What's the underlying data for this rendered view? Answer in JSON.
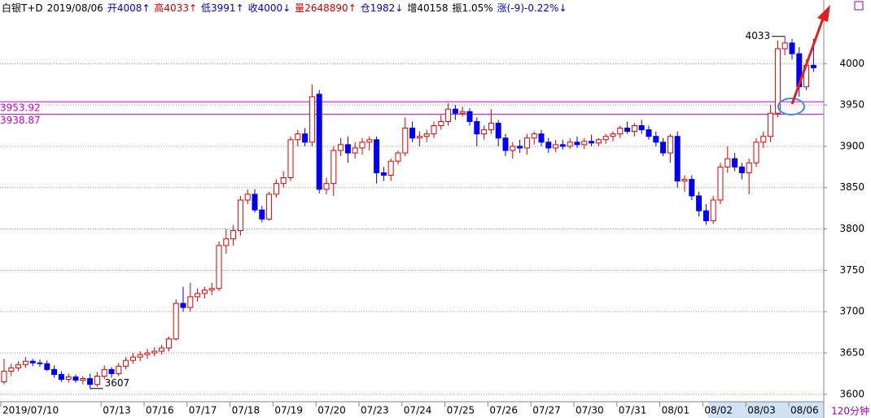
{
  "chart_data": {
    "type": "candlestick",
    "header": [
      {
        "text": "白银T+D",
        "color": "#000000"
      },
      {
        "text": "2019/08/06",
        "color": "#000000"
      },
      {
        "text": "开4008↑",
        "color": "#0000cc"
      },
      {
        "text": "高4033↑",
        "color": "#cc0000"
      },
      {
        "text": "低3991↑",
        "color": "#0000cc"
      },
      {
        "text": "收4000↓",
        "color": "#0000cc"
      },
      {
        "text": "量2648890↑",
        "color": "#cc0000"
      },
      {
        "text": "仓1982↓",
        "color": "#0000cc"
      },
      {
        "text": "增40158",
        "color": "#000000"
      },
      {
        "text": "振1.05%",
        "color": "#000000"
      },
      {
        "text": "涨(-9)-0.22%↓",
        "color": "#0000cc"
      }
    ],
    "period": "120分钟",
    "up_color": "#dd0000",
    "down_color": "#0000ee",
    "ylim": [
      3591,
      4077
    ],
    "yticks": [
      3600,
      3650,
      3700,
      3750,
      3800,
      3850,
      3900,
      3950,
      4000
    ],
    "grid": true,
    "reference_lines": [
      3953.92,
      3938.87
    ],
    "reference_color": "#cc00cc",
    "annotations": [
      3607,
      4033
    ],
    "categories": [
      "2019/07/10",
      null,
      null,
      null,
      null,
      null,
      null,
      null,
      null,
      null,
      null,
      null,
      null,
      null,
      "07/13",
      null,
      null,
      null,
      null,
      null,
      "07/16",
      null,
      null,
      null,
      null,
      null,
      "07/17",
      null,
      null,
      null,
      null,
      null,
      "07/18",
      null,
      null,
      null,
      null,
      null,
      "07/19",
      null,
      null,
      null,
      null,
      null,
      "07/20",
      null,
      null,
      null,
      null,
      null,
      "07/23",
      null,
      null,
      null,
      null,
      null,
      "07/24",
      null,
      null,
      null,
      null,
      null,
      "07/25",
      null,
      null,
      null,
      null,
      null,
      "07/26",
      null,
      null,
      null,
      null,
      null,
      "07/27",
      null,
      null,
      null,
      null,
      null,
      "07/30",
      null,
      null,
      null,
      null,
      null,
      "07/31",
      null,
      null,
      null,
      null,
      null,
      "08/01",
      null,
      null,
      null,
      null,
      null,
      "08/02",
      null,
      null,
      null,
      null,
      null,
      "08/03",
      null,
      null,
      null,
      null,
      null,
      "08/06",
      null,
      null,
      null
    ],
    "ohlc": [
      [
        3615,
        3643,
        3612,
        3628
      ],
      [
        3628,
        3637,
        3622,
        3632
      ],
      [
        3632,
        3640,
        3628,
        3636
      ],
      [
        3636,
        3645,
        3632,
        3640
      ],
      [
        3640,
        3643,
        3634,
        3638
      ],
      [
        3638,
        3642,
        3633,
        3637
      ],
      [
        3637,
        3641,
        3628,
        3630
      ],
      [
        3630,
        3635,
        3620,
        3624
      ],
      [
        3624,
        3628,
        3615,
        3618
      ],
      [
        3618,
        3625,
        3614,
        3621
      ],
      [
        3621,
        3624,
        3614,
        3617
      ],
      [
        3617,
        3622,
        3612,
        3619
      ],
      [
        3619,
        3625,
        3607,
        3612
      ],
      [
        3612,
        3627,
        3609,
        3622
      ],
      [
        3622,
        3635,
        3618,
        3630
      ],
      [
        3630,
        3633,
        3620,
        3625
      ],
      [
        3625,
        3638,
        3622,
        3634
      ],
      [
        3634,
        3645,
        3630,
        3641
      ],
      [
        3641,
        3650,
        3637,
        3645
      ],
      [
        3645,
        3652,
        3640,
        3648
      ],
      [
        3648,
        3655,
        3643,
        3650
      ],
      [
        3650,
        3657,
        3646,
        3652
      ],
      [
        3652,
        3660,
        3648,
        3656
      ],
      [
        3656,
        3670,
        3652,
        3667
      ],
      [
        3667,
        3715,
        3665,
        3710
      ],
      [
        3710,
        3730,
        3700,
        3705
      ],
      [
        3705,
        3735,
        3700,
        3718
      ],
      [
        3718,
        3728,
        3712,
        3722
      ],
      [
        3722,
        3730,
        3716,
        3726
      ],
      [
        3726,
        3735,
        3720,
        3728
      ],
      [
        3728,
        3785,
        3725,
        3780
      ],
      [
        3780,
        3800,
        3770,
        3788
      ],
      [
        3788,
        3805,
        3780,
        3798
      ],
      [
        3798,
        3840,
        3792,
        3835
      ],
      [
        3835,
        3848,
        3830,
        3842
      ],
      [
        3842,
        3848,
        3820,
        3823
      ],
      [
        3823,
        3828,
        3808,
        3812
      ],
      [
        3812,
        3845,
        3810,
        3842
      ],
      [
        3842,
        3860,
        3838,
        3855
      ],
      [
        3855,
        3870,
        3850,
        3862
      ],
      [
        3862,
        3912,
        3858,
        3908
      ],
      [
        3908,
        3920,
        3900,
        3915
      ],
      [
        3915,
        3922,
        3900,
        3905
      ],
      [
        3905,
        3975,
        3900,
        3960
      ],
      [
        3963,
        3968,
        3843,
        3848
      ],
      [
        3848,
        3862,
        3842,
        3855
      ],
      [
        3855,
        3900,
        3840,
        3895
      ],
      [
        3895,
        3910,
        3888,
        3902
      ],
      [
        3902,
        3912,
        3880,
        3892
      ],
      [
        3892,
        3905,
        3885,
        3898
      ],
      [
        3898,
        3910,
        3890,
        3905
      ],
      [
        3905,
        3912,
        3895,
        3908
      ],
      [
        3908,
        3912,
        3855,
        3868
      ],
      [
        3868,
        3875,
        3858,
        3865
      ],
      [
        3865,
        3885,
        3858,
        3882
      ],
      [
        3882,
        3895,
        3878,
        3892
      ],
      [
        3892,
        3935,
        3888,
        3922
      ],
      [
        3922,
        3930,
        3905,
        3910
      ],
      [
        3910,
        3918,
        3900,
        3912
      ],
      [
        3912,
        3920,
        3905,
        3915
      ],
      [
        3915,
        3930,
        3910,
        3925
      ],
      [
        3925,
        3938,
        3920,
        3930
      ],
      [
        3930,
        3952,
        3925,
        3945
      ],
      [
        3945,
        3950,
        3932,
        3940
      ],
      [
        3940,
        3948,
        3936,
        3942
      ],
      [
        3942,
        3946,
        3925,
        3930
      ],
      [
        3930,
        3935,
        3900,
        3915
      ],
      [
        3915,
        3925,
        3908,
        3920
      ],
      [
        3920,
        3945,
        3915,
        3928
      ],
      [
        3928,
        3932,
        3900,
        3910
      ],
      [
        3910,
        3915,
        3888,
        3895
      ],
      [
        3895,
        3905,
        3885,
        3900
      ],
      [
        3900,
        3908,
        3892,
        3898
      ],
      [
        3898,
        3915,
        3890,
        3910
      ],
      [
        3910,
        3918,
        3902,
        3915
      ],
      [
        3915,
        3920,
        3900,
        3905
      ],
      [
        3905,
        3910,
        3892,
        3898
      ],
      [
        3898,
        3908,
        3893,
        3902
      ],
      [
        3902,
        3908,
        3896,
        3900
      ],
      [
        3900,
        3910,
        3897,
        3905
      ],
      [
        3905,
        3912,
        3898,
        3902
      ],
      [
        3902,
        3910,
        3897,
        3906
      ],
      [
        3906,
        3914,
        3900,
        3904
      ],
      [
        3904,
        3910,
        3900,
        3908
      ],
      [
        3908,
        3915,
        3903,
        3912
      ],
      [
        3912,
        3918,
        3906,
        3915
      ],
      [
        3915,
        3925,
        3910,
        3922
      ],
      [
        3922,
        3930,
        3915,
        3918
      ],
      [
        3918,
        3928,
        3912,
        3925
      ],
      [
        3925,
        3932,
        3915,
        3920
      ],
      [
        3920,
        3925,
        3908,
        3912
      ],
      [
        3912,
        3918,
        3900,
        3905
      ],
      [
        3905,
        3910,
        3888,
        3892
      ],
      [
        3892,
        3915,
        3880,
        3912
      ],
      [
        3912,
        3918,
        3850,
        3858
      ],
      [
        3858,
        3865,
        3845,
        3860
      ],
      [
        3860,
        3865,
        3835,
        3840
      ],
      [
        3840,
        3845,
        3815,
        3822
      ],
      [
        3822,
        3830,
        3805,
        3810
      ],
      [
        3810,
        3840,
        3806,
        3835
      ],
      [
        3835,
        3880,
        3830,
        3875
      ],
      [
        3875,
        3900,
        3868,
        3885
      ],
      [
        3885,
        3892,
        3870,
        3875
      ],
      [
        3875,
        3880,
        3860,
        3868
      ],
      [
        3868,
        3885,
        3842,
        3880
      ],
      [
        3880,
        3910,
        3875,
        3905
      ],
      [
        3905,
        3918,
        3898,
        3912
      ],
      [
        3912,
        3950,
        3905,
        3940
      ],
      [
        3940,
        4028,
        3935,
        4018
      ],
      [
        4018,
        4033,
        4010,
        4025
      ],
      [
        4025,
        4030,
        4005,
        4012
      ],
      [
        4012,
        4020,
        3960,
        3972
      ],
      [
        3972,
        4005,
        3968,
        3998
      ],
      [
        3998,
        4030,
        3990,
        3995
      ]
    ]
  }
}
